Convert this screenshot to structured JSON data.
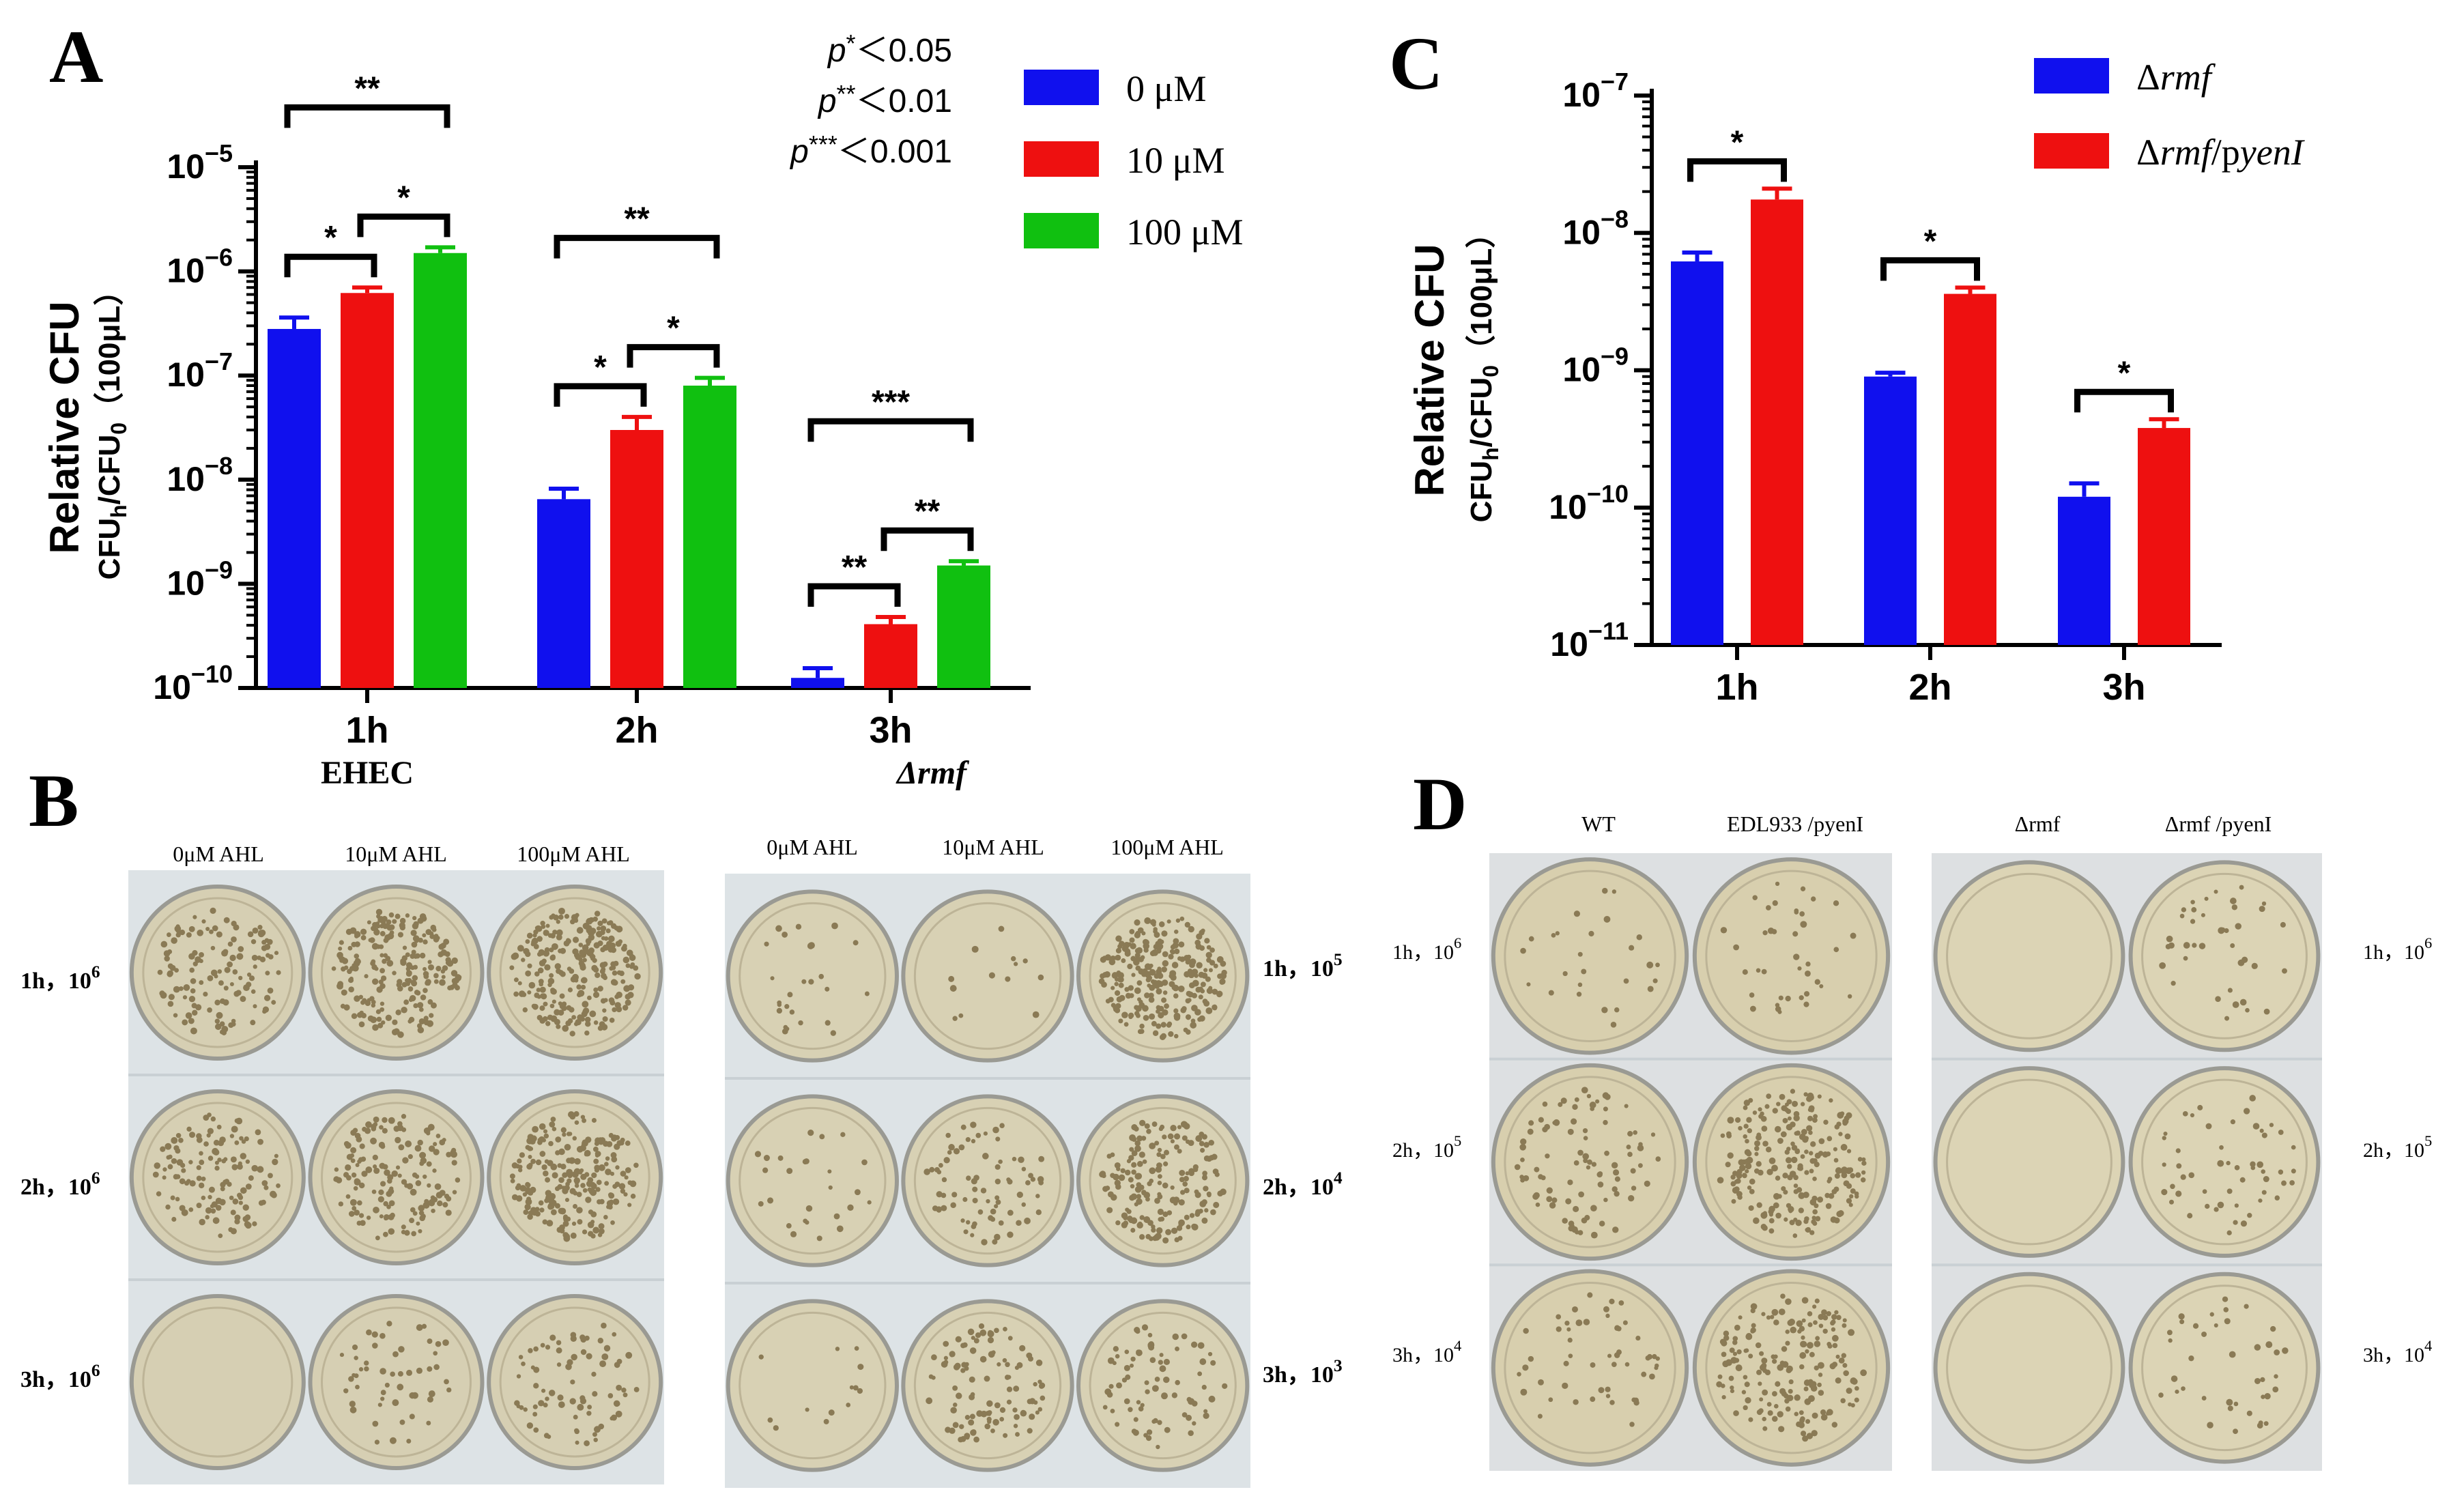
{
  "panels": {
    "A": {
      "letter": "A"
    },
    "B": {
      "letter": "B"
    },
    "C": {
      "letter": "C"
    },
    "D": {
      "letter": "D"
    }
  },
  "chart_data": [
    {
      "id": "A",
      "type": "bar",
      "ylabel": "Relative CFU",
      "ylabel2": "CFUh/CFU0（100μL）",
      "ylabel2_parts": {
        "base1": "CFU",
        "sub1": "h",
        "mid": "/CFU",
        "sub2": "0",
        "tail": "（100μL）"
      },
      "yscale": "log",
      "ylim": [
        1e-10,
        1e-05
      ],
      "ytick_exponents": [
        -5,
        -6,
        -7,
        -8,
        -9,
        -10
      ],
      "categories": [
        "1h",
        "2h",
        "3h"
      ],
      "category_sublabels": [
        "EHEC",
        "",
        "Δrmf"
      ],
      "series": [
        {
          "name": "0 μM",
          "color": "#1010ee",
          "values": [
            2.8e-07,
            6.5e-09,
            1.25e-10
          ],
          "errors": [
            3.6e-07,
            8.2e-09,
            1.55e-10
          ]
        },
        {
          "name": "10 μM",
          "color": "#ee1010",
          "values": [
            6.2e-07,
            3e-08,
            4.1e-10
          ],
          "errors": [
            7e-07,
            4e-08,
            4.8e-10
          ]
        },
        {
          "name": "100 μM",
          "color": "#10c010",
          "values": [
            1.5e-06,
            8e-08,
            1.5e-09
          ],
          "errors": [
            1.7e-06,
            9.5e-08,
            1.65e-09
          ]
        }
      ],
      "significance": [
        {
          "group": 0,
          "from": 0,
          "to": 1,
          "label": "*"
        },
        {
          "group": 0,
          "from": 1,
          "to": 2,
          "label": "*"
        },
        {
          "group": 0,
          "from": 0,
          "to": 2,
          "label": "**"
        },
        {
          "group": 1,
          "from": 0,
          "to": 1,
          "label": "*"
        },
        {
          "group": 1,
          "from": 1,
          "to": 2,
          "label": "*"
        },
        {
          "group": 1,
          "from": 0,
          "to": 2,
          "label": "**"
        },
        {
          "group": 2,
          "from": 0,
          "to": 1,
          "label": "**"
        },
        {
          "group": 2,
          "from": 1,
          "to": 2,
          "label": "**"
        },
        {
          "group": 2,
          "from": 0,
          "to": 2,
          "label": "***"
        }
      ],
      "pvalue_notes": [
        {
          "p": "p",
          "stars": "*",
          "rest": "＜0.05"
        },
        {
          "p": "p",
          "stars": "**",
          "rest": "＜0.01"
        },
        {
          "p": "p",
          "stars": "***",
          "rest": "＜0.001"
        }
      ],
      "legend_position": "top-right"
    },
    {
      "id": "C",
      "type": "bar",
      "ylabel": "Relative CFU",
      "ylabel2": "CFUh/CFU0（100μL）",
      "ylabel2_parts": {
        "base1": "CFU",
        "sub1": "h",
        "mid": "/CFU",
        "sub2": "0",
        "tail": "（100μL）"
      },
      "yscale": "log",
      "ylim": [
        1e-11,
        1e-07
      ],
      "ytick_exponents": [
        -7,
        -8,
        -9,
        -10,
        -11
      ],
      "categories": [
        "1h",
        "2h",
        "3h"
      ],
      "series": [
        {
          "name": "Δrmf",
          "name_parts": [
            "Δ",
            "rmf",
            "",
            ""
          ],
          "color": "#1010ee",
          "values": [
            6.2e-09,
            9e-10,
            1.2e-10
          ],
          "errors": [
            7.2e-09,
            9.6e-10,
            1.5e-10
          ]
        },
        {
          "name": "Δrmf/pyenI",
          "name_parts": [
            "Δ",
            "rmf",
            "/p",
            "yenI"
          ],
          "color": "#ee1010",
          "values": [
            1.75e-08,
            3.6e-09,
            3.8e-10
          ],
          "errors": [
            2.1e-08,
            4e-09,
            4.4e-10
          ]
        }
      ],
      "significance": [
        {
          "group": 0,
          "from": 0,
          "to": 1,
          "label": "*"
        },
        {
          "group": 1,
          "from": 0,
          "to": 1,
          "label": "*"
        },
        {
          "group": 2,
          "from": 0,
          "to": 1,
          "label": "*"
        }
      ],
      "legend_position": "top-right"
    }
  ],
  "plates": {
    "B": {
      "left_columns": [
        "0μM AHL",
        "10μM AHL",
        "100μM AHL"
      ],
      "right_columns": [
        "0μM AHL",
        "10μM AHL",
        "100μM AHL"
      ],
      "left_rows": [
        {
          "time": "1h，10",
          "exp": "6"
        },
        {
          "time": "2h，10",
          "exp": "6"
        },
        {
          "time": "3h，10",
          "exp": "6"
        }
      ],
      "right_rows": [
        {
          "time": "1h，10",
          "exp": "5"
        },
        {
          "time": "2h，10",
          "exp": "4"
        },
        {
          "time": "3h，10",
          "exp": "3"
        }
      ],
      "colony_density": [
        [
          0.5,
          0.9,
          1.0
        ],
        [
          0.5,
          0.6,
          0.9
        ],
        [
          0.0,
          0.2,
          0.3
        ]
      ],
      "colony_density_right": [
        [
          0.1,
          0.05,
          1.0
        ],
        [
          0.1,
          0.3,
          0.7
        ],
        [
          0.05,
          0.4,
          0.3
        ]
      ]
    },
    "D": {
      "left_columns": [
        "WT",
        "EDL933 /pyenI"
      ],
      "right_columns": [
        "Δrmf",
        "Δrmf /pyenI"
      ],
      "left_rows": [
        {
          "time": "1h，10",
          "exp": "6"
        },
        {
          "time": "2h，10",
          "exp": "5"
        },
        {
          "time": "3h，10",
          "exp": "4"
        }
      ],
      "right_rows": [
        {
          "time": "1h，10",
          "exp": "6"
        },
        {
          "time": "2h，10",
          "exp": "5"
        },
        {
          "time": "3h，10",
          "exp": "4"
        }
      ],
      "colony_density": [
        [
          0.1,
          0.15
        ],
        [
          0.35,
          0.9
        ],
        [
          0.2,
          0.7
        ]
      ],
      "colony_density_right": [
        [
          0.0,
          0.15
        ],
        [
          0.0,
          0.2
        ],
        [
          0.0,
          0.15
        ]
      ]
    }
  }
}
